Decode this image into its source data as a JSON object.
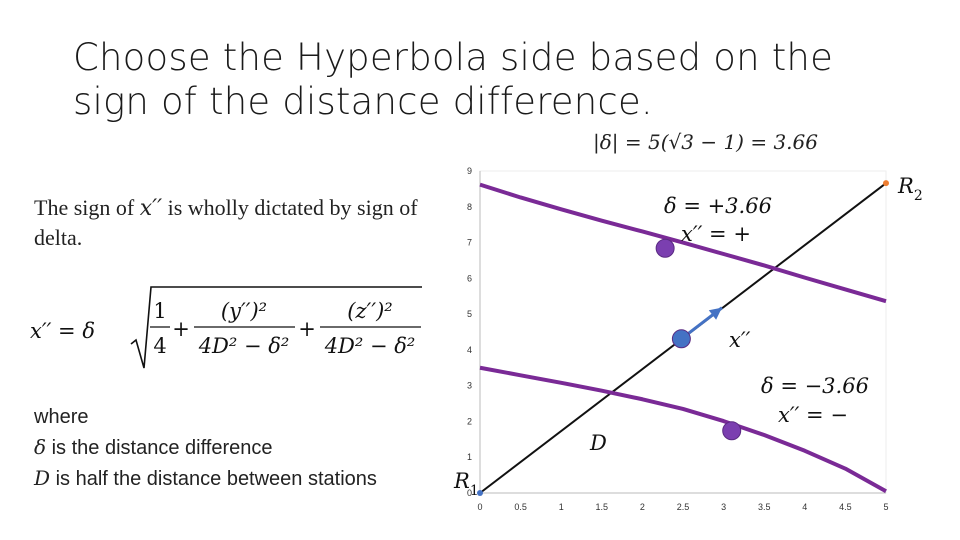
{
  "slide": {
    "title": "Choose the Hyperbola side based on the sign of the distance difference.",
    "sign_text_part1": "The sign of ",
    "sign_text_var": "x′′",
    "sign_text_part2": " is wholly dictated by sign of delta.",
    "where_label": "where",
    "delta_def_sym": "δ",
    "delta_def_text": " is the distance difference",
    "d_def_sym": "D",
    "d_def_text": " is half the distance between stations",
    "abs_delta_eq": "|δ| = 5(√3 − 1) = 3.66"
  },
  "formula": {
    "lhs": "x′′ = δ",
    "t1_num": "1",
    "t1_den": "4",
    "plus": "+",
    "t2_num": "(y′′)²",
    "t2_den": "4D² − δ²",
    "t3_num": "(z′′)²",
    "t3_den": "4D² − δ²"
  },
  "chart_data": {
    "type": "line",
    "xlim": [
      0,
      5
    ],
    "ylim": [
      0,
      9
    ],
    "x_ticks": [
      "0",
      "0.5",
      "1",
      "1.5",
      "2",
      "2.5",
      "3",
      "3.5",
      "4",
      "4.5",
      "5"
    ],
    "y_ticks": [
      "0",
      "1",
      "2",
      "3",
      "4",
      "5",
      "6",
      "7",
      "8",
      "9"
    ],
    "grid": false,
    "baseline": {
      "x": [
        0,
        5
      ],
      "y": [
        0,
        8.66
      ]
    },
    "upper_curve": {
      "x": [
        0,
        0.5,
        1,
        1.5,
        2,
        2.5,
        3,
        3.5,
        4,
        4.5,
        5
      ],
      "y": [
        8.62,
        8.26,
        7.93,
        7.61,
        7.31,
        7.0,
        6.68,
        6.36,
        6.02,
        5.69,
        5.36
      ]
    },
    "lower_curve": {
      "x": [
        0,
        0.5,
        1,
        1.5,
        2,
        2.5,
        3,
        3.5,
        4,
        4.5,
        5
      ],
      "y": [
        3.5,
        3.29,
        3.08,
        2.86,
        2.62,
        2.35,
        2.01,
        1.62,
        1.18,
        0.68,
        0.05
      ]
    },
    "points": [
      {
        "x": 2.28,
        "y": 6.84
      },
      {
        "x": 2.48,
        "y": 4.31
      },
      {
        "x": 3.1,
        "y": 1.74
      }
    ],
    "arrow": {
      "from": [
        2.48,
        4.31
      ],
      "to": [
        2.98,
        5.18
      ],
      "label": "x′′"
    },
    "stations": [
      {
        "x": 0,
        "y": 0,
        "label": "R",
        "sub": "1"
      },
      {
        "x": 5,
        "y": 8.66,
        "label": "R",
        "sub": "2"
      }
    ],
    "d_label": "D",
    "upper_label_1": "δ = +3.66",
    "upper_label_2": "x′′ = +",
    "lower_label_1": "δ = −3.66",
    "lower_label_2": "x′′ = −",
    "colors": {
      "curve": "#7a2a96",
      "point": "#7b3fb0",
      "blue_point": "#4472c4",
      "line": "#111111",
      "r1": "#4472c4",
      "r2": "#ed7d31"
    }
  }
}
